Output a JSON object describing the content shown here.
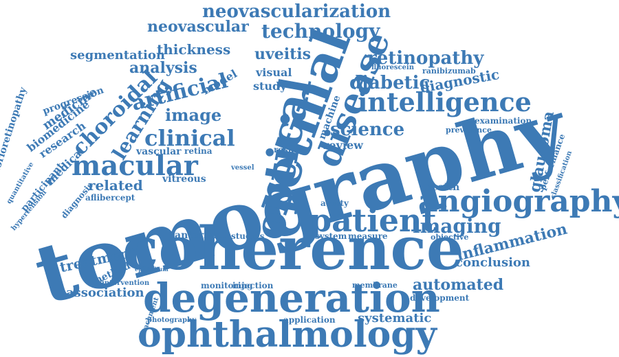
{
  "color": "#3d7ab5",
  "words": [
    "tomography",
    "coherence",
    "retinal",
    "degeneration",
    "ophthalmology",
    "optical",
    "disease",
    "angiography",
    "patient",
    "intelligence",
    "macular",
    "clinical",
    "artificial",
    "learning",
    "choroidal",
    "science",
    "imaging",
    "diabetic",
    "retinopathy",
    "technology",
    "neovascularization",
    "neovascular",
    "image",
    "analysis",
    "thickness",
    "segmentation",
    "uveitis",
    "automated",
    "inflammation",
    "glaucoma",
    "treatment",
    "association",
    "conclusion",
    "systematic",
    "related",
    "diagnostic",
    "medicine",
    "model",
    "study",
    "review",
    "chorioretinopathy",
    "biomedicine",
    "research",
    "progression",
    "medical",
    "vascular",
    "vitreous",
    "anterior",
    "health",
    "development",
    "machine",
    "visual",
    "result",
    "acuity",
    "studies",
    "system",
    "measure",
    "method",
    "injection",
    "monitoring",
    "application",
    "ranibizumab",
    "examination",
    "prevalence",
    "objective",
    "membrane",
    "aflibercept",
    "participant",
    "quantitative",
    "diagnosis",
    "fluorescein",
    "retina",
    "vessel",
    "epithelium",
    "hypertension",
    "intervention",
    "photography",
    "detachment",
    "performance",
    "classification"
  ]
}
